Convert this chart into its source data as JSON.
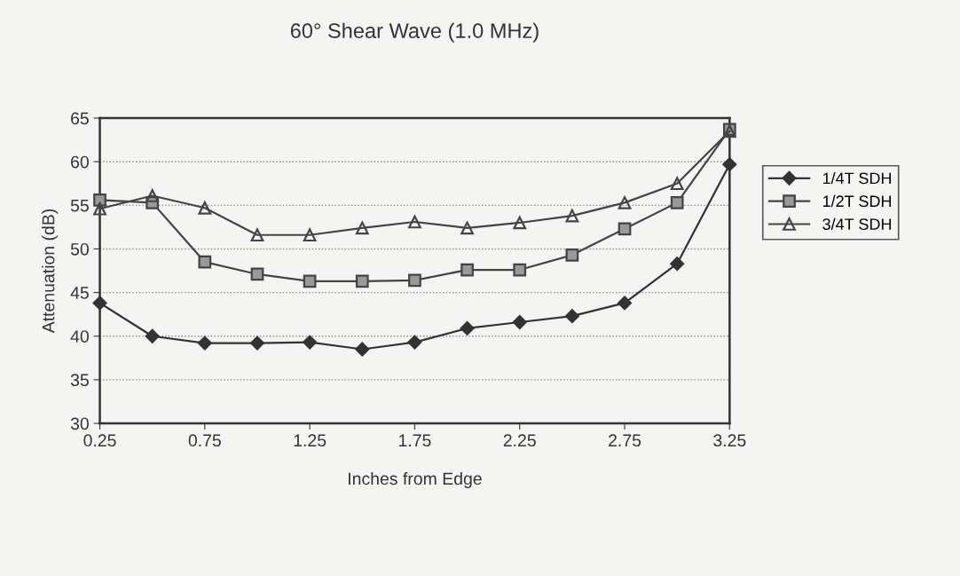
{
  "chart_data": {
    "type": "line",
    "title": "60° Shear Wave (1.0 MHz)",
    "xlabel": "Inches from Edge",
    "ylabel": "Attenuation (dB)",
    "x": [
      0.25,
      0.5,
      0.75,
      1.0,
      1.25,
      1.5,
      1.75,
      2.0,
      2.25,
      2.5,
      2.75,
      3.0,
      3.25
    ],
    "series": [
      {
        "name": "1/4T SDH",
        "color": "#333333",
        "marker": "diamond",
        "values": [
          43.8,
          40.0,
          39.2,
          39.2,
          39.3,
          38.5,
          39.3,
          40.9,
          41.6,
          42.3,
          43.8,
          48.3,
          59.7
        ]
      },
      {
        "name": "1/2T SDH",
        "color": "#444444",
        "marker": "square",
        "values": [
          55.6,
          55.3,
          48.5,
          47.1,
          46.3,
          46.3,
          46.4,
          47.6,
          47.6,
          49.3,
          52.3,
          55.3,
          63.7
        ]
      },
      {
        "name": "3/4T SDH",
        "color": "#444444",
        "marker": "triangle",
        "values": [
          54.6,
          56.1,
          54.7,
          51.6,
          51.6,
          52.4,
          53.1,
          52.4,
          53.0,
          53.8,
          55.3,
          57.5,
          63.5
        ]
      }
    ],
    "xlim": [
      0.25,
      3.25
    ],
    "xticks": [
      0.25,
      0.75,
      1.25,
      1.75,
      2.25,
      2.75,
      3.25
    ],
    "ylim": [
      30,
      65
    ],
    "yticks": [
      30,
      35,
      40,
      45,
      50,
      55,
      60,
      65
    ],
    "grid": "y",
    "legend": "right",
    "line_style": "solid"
  }
}
